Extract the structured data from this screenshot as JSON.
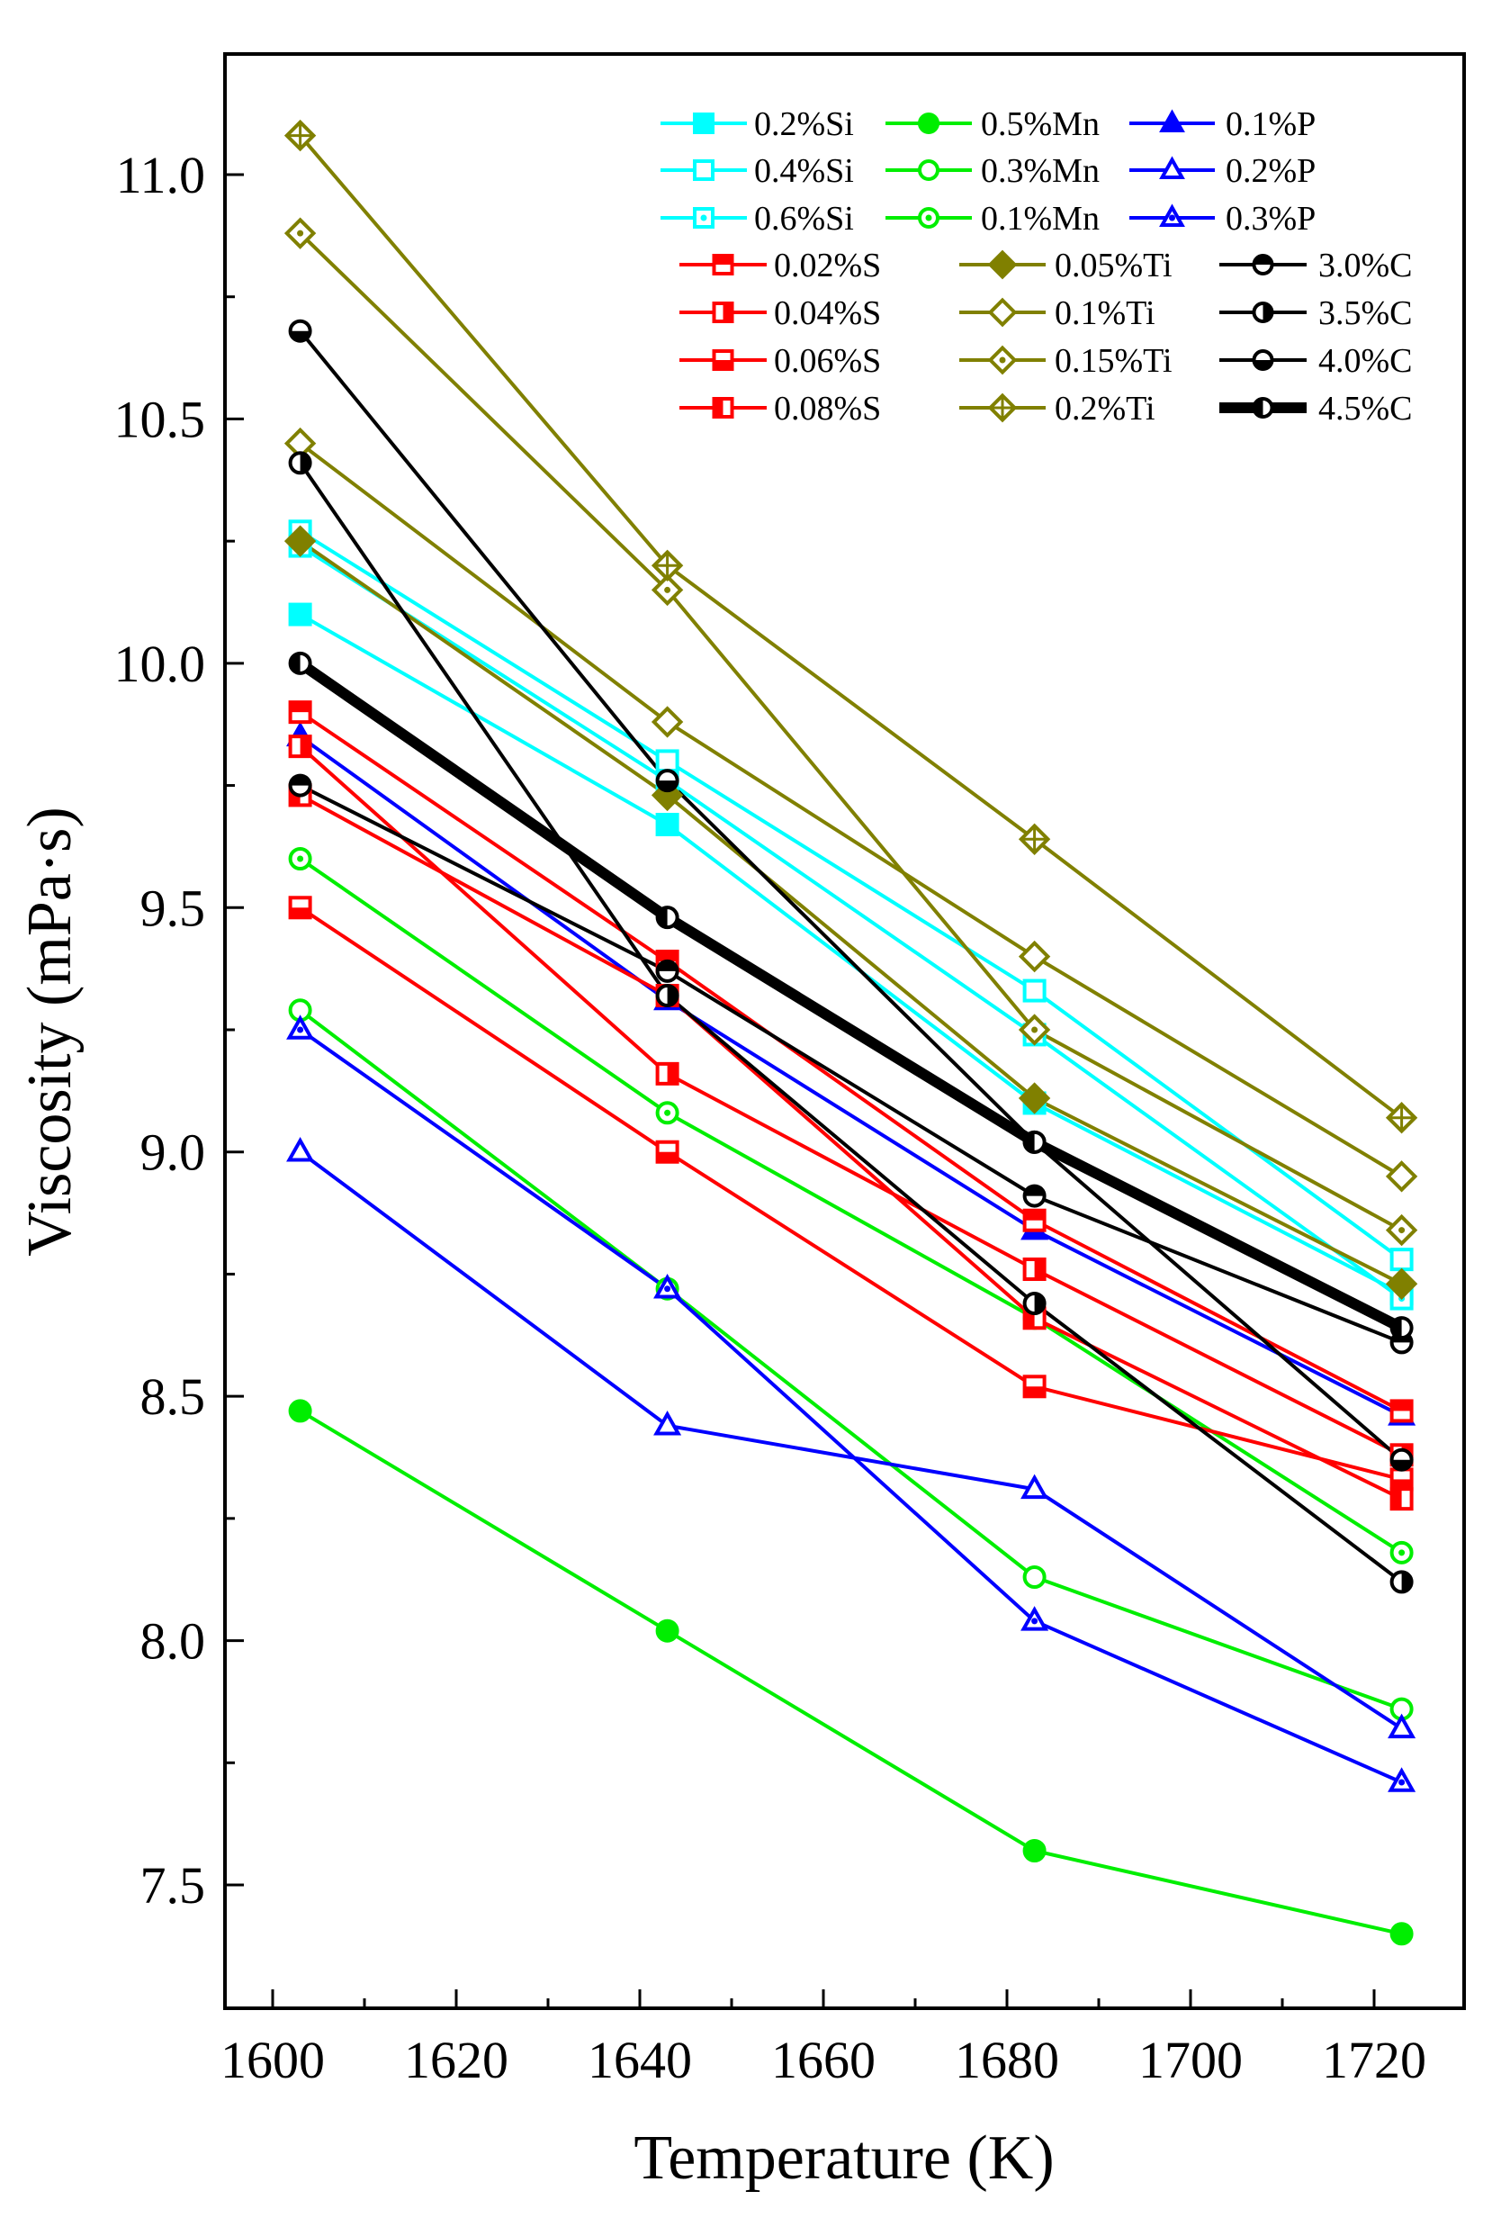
{
  "chart_data": {
    "type": "line",
    "xlabel": "Temperature (K)",
    "ylabel": "Viscosity (mPa·s)",
    "xlim": [
      1590,
      1732
    ],
    "ylim": [
      7.27,
      11.25
    ],
    "xticks": [
      1600,
      1620,
      1640,
      1660,
      1680,
      1700,
      1720
    ],
    "yticks": [
      7.5,
      8.0,
      8.5,
      9.0,
      9.5,
      10.0,
      10.5,
      11.0
    ],
    "ytick_labels": [
      "7.5",
      "8.0",
      "8.5",
      "9.0",
      "9.5",
      "10.0",
      "10.5",
      "11.0"
    ],
    "grid": false,
    "legend_position": "top-right",
    "x": [
      1603,
      1643,
      1683,
      1723
    ],
    "series": [
      {
        "name": "0.2%Si",
        "color": "#00ffff",
        "marker": "square",
        "fill": "full",
        "values": [
          10.1,
          9.67,
          9.1,
          8.71
        ]
      },
      {
        "name": "0.4%Si",
        "color": "#00ffff",
        "marker": "square",
        "fill": "open",
        "values": [
          10.27,
          9.8,
          9.33,
          8.78
        ]
      },
      {
        "name": "0.6%Si",
        "color": "#00ffff",
        "marker": "square",
        "fill": "dot",
        "values": [
          10.24,
          9.76,
          9.24,
          8.7
        ]
      },
      {
        "name": "0.5%Mn",
        "color": "#00ee00",
        "marker": "circle",
        "fill": "full",
        "values": [
          8.47,
          8.02,
          7.57,
          7.4
        ]
      },
      {
        "name": "0.3%Mn",
        "color": "#00ee00",
        "marker": "circle",
        "fill": "open",
        "values": [
          9.29,
          8.72,
          8.13,
          7.86
        ]
      },
      {
        "name": "0.1%Mn",
        "color": "#00ee00",
        "marker": "circle",
        "fill": "dot",
        "values": [
          9.6,
          9.08,
          8.66,
          8.18
        ]
      },
      {
        "name": "0.1%P",
        "color": "#0000ff",
        "marker": "triangle",
        "fill": "full",
        "values": [
          9.85,
          9.31,
          8.84,
          8.46
        ]
      },
      {
        "name": "0.2%P",
        "color": "#0000ff",
        "marker": "triangle",
        "fill": "open",
        "values": [
          9.0,
          8.44,
          8.31,
          7.82
        ]
      },
      {
        "name": "0.3%P",
        "color": "#0000ff",
        "marker": "triangle",
        "fill": "dot",
        "values": [
          9.25,
          8.72,
          8.04,
          7.71
        ]
      },
      {
        "name": "0.02%S",
        "color": "#ff0000",
        "marker": "square",
        "fill": "top",
        "values": [
          9.9,
          9.39,
          8.86,
          8.47
        ]
      },
      {
        "name": "0.04%S",
        "color": "#ff0000",
        "marker": "square",
        "fill": "right",
        "values": [
          9.83,
          9.16,
          8.76,
          8.38
        ]
      },
      {
        "name": "0.06%S",
        "color": "#ff0000",
        "marker": "square",
        "fill": "bottom",
        "values": [
          9.5,
          9.0,
          8.52,
          8.33
        ]
      },
      {
        "name": "0.08%S",
        "color": "#ff0000",
        "marker": "square",
        "fill": "left",
        "values": [
          9.73,
          9.32,
          8.66,
          8.29
        ]
      },
      {
        "name": "0.05%Ti",
        "color": "#808000",
        "marker": "diamond",
        "fill": "full",
        "values": [
          10.25,
          9.73,
          9.11,
          8.73
        ]
      },
      {
        "name": "0.1%Ti",
        "color": "#808000",
        "marker": "diamond",
        "fill": "open",
        "values": [
          10.45,
          9.88,
          9.4,
          8.95
        ]
      },
      {
        "name": "0.15%Ti",
        "color": "#808000",
        "marker": "diamond",
        "fill": "dot",
        "values": [
          10.88,
          10.15,
          9.25,
          8.84
        ]
      },
      {
        "name": "0.2%Ti",
        "color": "#808000",
        "marker": "diamond",
        "fill": "cross",
        "values": [
          11.08,
          10.2,
          9.64,
          9.07
        ]
      },
      {
        "name": "3.0%C",
        "color": "#000000",
        "marker": "circle",
        "fill": "top",
        "values": [
          9.75,
          9.37,
          8.91,
          8.61
        ]
      },
      {
        "name": "3.5%C",
        "color": "#000000",
        "marker": "circle",
        "fill": "right",
        "values": [
          10.41,
          9.32,
          8.69,
          8.12
        ]
      },
      {
        "name": "4.0%C",
        "color": "#000000",
        "marker": "circle",
        "fill": "bottom",
        "values": [
          10.68,
          9.76,
          9.02,
          8.37
        ]
      },
      {
        "name": "4.5%C",
        "color": "#000000",
        "marker": "circle",
        "fill": "left",
        "thick": true,
        "values": [
          10.0,
          9.48,
          9.02,
          8.64
        ]
      }
    ]
  }
}
